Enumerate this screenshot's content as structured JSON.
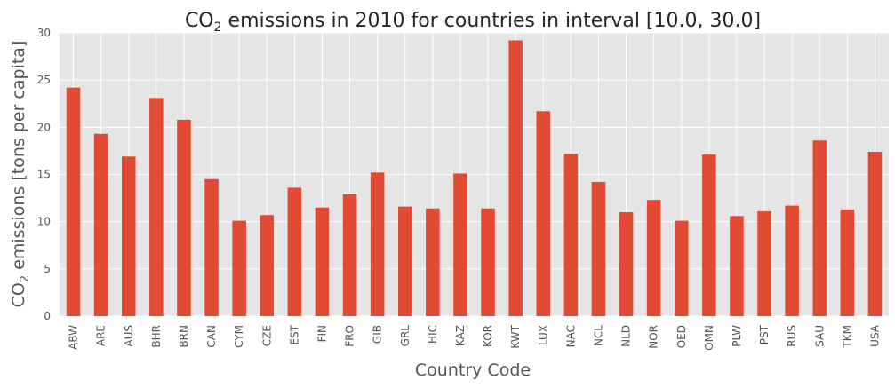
{
  "chart_data": {
    "type": "bar",
    "title_parts": {
      "prefix": "CO",
      "subscript": "2",
      "suffix": " emissions in 2010 for countries in interval [10.0, 30.0]"
    },
    "ylabel_parts": {
      "prefix": "CO",
      "subscript": "2",
      "suffix": " emissions [tons per capita]"
    },
    "xlabel": "Country Code",
    "categories": [
      "ABW",
      "ARE",
      "AUS",
      "BHR",
      "BRN",
      "CAN",
      "CYM",
      "CZE",
      "EST",
      "FIN",
      "FRO",
      "GIB",
      "GRL",
      "HIC",
      "KAZ",
      "KOR",
      "KWT",
      "LUX",
      "NAC",
      "NCL",
      "NLD",
      "NOR",
      "OED",
      "OMN",
      "PLW",
      "PST",
      "RUS",
      "SAU",
      "TKM",
      "USA"
    ],
    "values": [
      24.2,
      19.3,
      16.9,
      23.1,
      20.8,
      14.5,
      10.1,
      10.7,
      13.6,
      11.5,
      12.9,
      15.2,
      11.6,
      11.4,
      15.1,
      11.4,
      29.2,
      21.7,
      17.2,
      14.2,
      11.0,
      12.3,
      10.1,
      17.1,
      10.6,
      11.1,
      11.7,
      18.6,
      11.3,
      17.4
    ],
    "yticks": [
      0,
      5,
      10,
      15,
      20,
      25,
      30
    ],
    "ylim": [
      0,
      30
    ],
    "grid": true,
    "colors": {
      "bar": "#E24A33",
      "plot_bg": "#E5E5E5",
      "grid": "#FFFFFF"
    }
  }
}
